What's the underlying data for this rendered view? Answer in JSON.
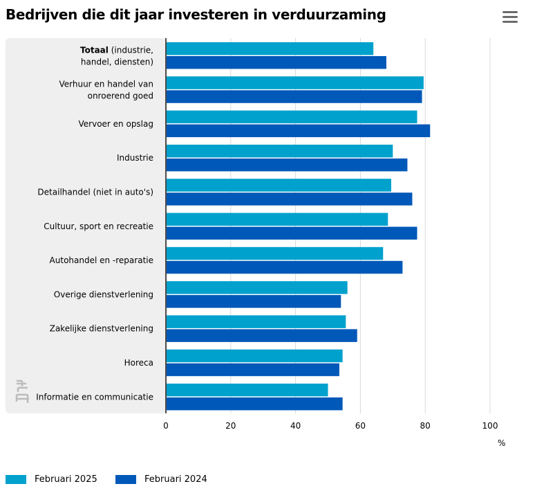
{
  "page": {
    "title": "Bedrijven die dit jaar investeren in verduurzaming",
    "menu_icon": "hamburger-menu-icon",
    "logo_icon": "cbs-logo-icon"
  },
  "chart_data": {
    "type": "bar",
    "orientation": "horizontal",
    "title": "Bedrijven die dit jaar investeren in verduurzaming",
    "categories": [
      {
        "bold": "Totaal",
        "rest": " (industrie,",
        "line2": "handel, diensten)"
      },
      {
        "line1": "Verhuur en handel van",
        "line2": "onroerend goed"
      },
      {
        "line1": "Vervoer en opslag"
      },
      {
        "line1": "Industrie"
      },
      {
        "line1": "Detailhandel (niet in auto's)"
      },
      {
        "line1": "Cultuur, sport en recreatie"
      },
      {
        "line1": "Autohandel en -reparatie"
      },
      {
        "line1": "Overige dienstverlening"
      },
      {
        "line1": "Zakelijke dienstverlening"
      },
      {
        "line1": "Horeca"
      },
      {
        "line1": "Informatie en communicatie"
      }
    ],
    "series": [
      {
        "name": "Februari 2025",
        "color": "#00a1cd",
        "values": [
          64,
          79.5,
          77.5,
          70,
          69.5,
          68.5,
          67,
          56,
          55.5,
          54.5,
          50
        ]
      },
      {
        "name": "Februari 2024",
        "color": "#0058b8",
        "values": [
          68,
          79,
          81.5,
          74.5,
          76,
          77.5,
          73,
          54,
          59,
          53.5,
          54.5
        ]
      }
    ],
    "xlim": [
      0,
      100
    ],
    "xticks": [
      "0",
      "20",
      "40",
      "60",
      "80",
      "100"
    ],
    "unit_label": "%",
    "grid": true,
    "legend_position": "bottom-left"
  }
}
